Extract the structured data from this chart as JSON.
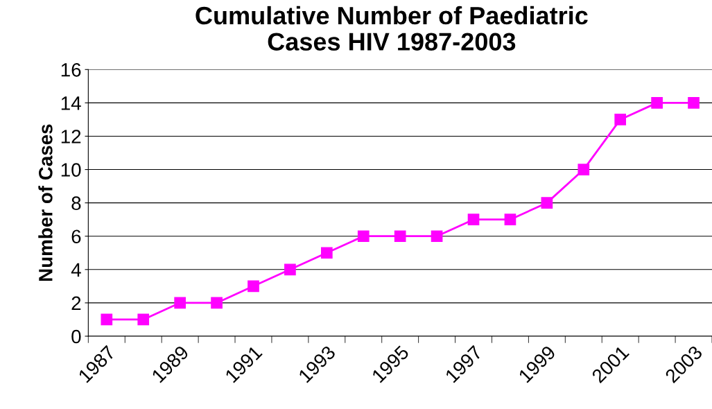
{
  "chart_data": {
    "type": "line",
    "title": "Cumulative Number of Paediatric\nCases HIV 1987-2003",
    "ylabel": "Number of Cases",
    "categories": [
      "1987",
      null,
      "1989",
      null,
      "1991",
      null,
      "1993",
      null,
      "1995",
      null,
      "1997",
      null,
      "1999",
      null,
      "2001",
      null,
      "2003"
    ],
    "series": [
      {
        "color": "#ff00ff",
        "values": [
          1,
          1,
          2,
          2,
          3,
          4,
          5,
          6,
          6,
          6,
          7,
          7,
          8,
          10,
          13,
          14,
          14
        ]
      }
    ],
    "ylim": [
      0,
      16
    ],
    "yticks": [
      0,
      2,
      4,
      6,
      8,
      10,
      12,
      14,
      16
    ],
    "grid": "y",
    "marker": "square",
    "line_style": "solid",
    "legend": false
  }
}
